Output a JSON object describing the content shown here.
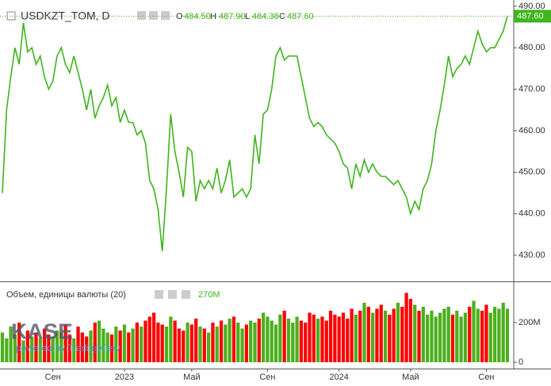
{
  "chart_data": {
    "type": "line",
    "symbol": "USDKZT_TOM, D",
    "legend": {
      "o_label": "O",
      "o": "484.50",
      "h_label": "H",
      "h": "487.90",
      "l_label": "L",
      "l": "484.38",
      "c_label": "C",
      "c": "487.60"
    },
    "last_price_label": "487.60",
    "watermark": "KASE",
    "watermark_sub": "powered by TradingView",
    "xticks": [
      {
        "value": 12,
        "label": "Сен"
      },
      {
        "value": 29,
        "label": "2023"
      },
      {
        "value": 45,
        "label": "Май"
      },
      {
        "value": 63,
        "label": "Сен"
      },
      {
        "value": 80,
        "label": "2024"
      },
      {
        "value": 97,
        "label": "Май"
      },
      {
        "value": 115,
        "label": "Сен"
      }
    ],
    "ylim": [
      423.7,
      491.5
    ],
    "yticks": [
      {
        "value": 430,
        "label": "430.00"
      },
      {
        "value": 440,
        "label": "440.00"
      },
      {
        "value": 450,
        "label": "450.00"
      },
      {
        "value": 460,
        "label": "460.00"
      },
      {
        "value": 470,
        "label": "470.00"
      },
      {
        "value": 480,
        "label": "480.00"
      },
      {
        "value": 490,
        "label": "490.00"
      }
    ],
    "color": "#3fb41c",
    "up_color": "#4caf1c",
    "down_color": "#ff0000",
    "values": [
      445,
      465,
      473,
      480,
      476,
      486,
      479,
      480,
      476,
      478,
      473,
      470,
      472,
      478,
      480,
      476,
      474,
      478,
      474,
      470,
      465,
      470,
      463,
      466,
      468,
      471,
      466,
      468,
      462,
      465,
      462,
      462,
      459,
      460,
      457,
      448,
      446,
      441,
      431,
      446,
      464,
      455,
      450,
      444,
      456,
      455,
      443,
      448,
      446,
      448,
      446,
      451,
      445,
      448,
      453,
      444,
      445,
      446,
      444,
      446,
      459,
      452,
      464,
      465,
      470,
      478,
      480,
      477,
      478,
      478,
      478,
      473,
      468,
      463,
      461,
      462,
      461,
      459,
      458,
      457,
      455,
      452,
      451,
      446,
      452,
      449,
      453,
      450,
      452,
      450,
      449,
      449,
      448,
      447,
      448,
      446,
      444,
      440,
      443,
      441,
      446,
      448,
      452,
      460,
      465,
      471,
      478,
      473,
      475,
      476,
      478,
      476,
      480,
      484,
      481,
      479,
      480,
      480,
      482,
      484,
      487.6
    ],
    "volume": {
      "title": "Объем, единицы валюты (20)",
      "last_label": "270M",
      "ylim": [
        -32,
        404
      ],
      "yticks": [
        {
          "value": 0,
          "label": "0"
        },
        {
          "value": 200,
          "label": "200M"
        }
      ],
      "values": [
        150,
        120,
        180,
        140,
        200,
        110,
        160,
        130,
        150,
        120,
        170,
        140,
        130,
        160,
        150,
        190,
        140,
        120,
        180,
        150,
        130,
        160,
        200,
        210,
        170,
        150,
        140,
        180,
        160,
        190,
        150,
        170,
        200,
        180,
        210,
        230,
        250,
        200,
        190,
        180,
        230,
        210,
        170,
        160,
        200,
        190,
        220,
        180,
        170,
        150,
        200,
        180,
        210,
        190,
        220,
        230,
        200,
        170,
        190,
        210,
        200,
        220,
        250,
        230,
        210,
        190,
        240,
        260,
        220,
        200,
        230,
        210,
        200,
        250,
        240,
        220,
        230,
        210,
        260,
        240,
        230,
        250,
        220,
        270,
        240,
        260,
        300,
        280,
        250,
        270,
        290,
        260,
        240,
        270,
        300,
        280,
        350,
        320,
        290,
        260,
        280,
        240,
        260,
        230,
        250,
        270,
        280,
        240,
        260,
        230,
        250,
        280,
        310,
        270,
        260,
        290,
        250,
        280,
        270,
        300,
        270
      ]
    }
  }
}
